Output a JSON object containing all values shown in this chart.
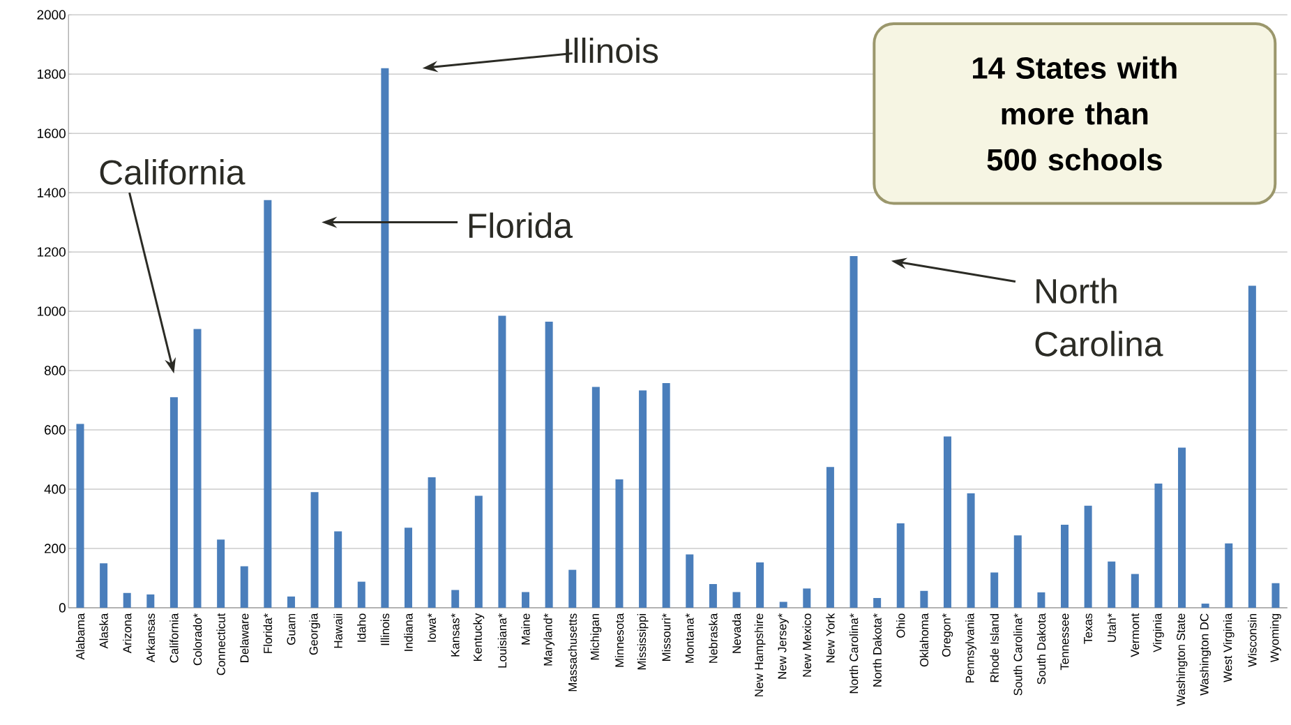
{
  "chart_data": {
    "type": "bar",
    "color": "#4a7ebb",
    "grid": "y",
    "ylim": [
      0,
      2000
    ],
    "yticks": [
      0,
      200,
      400,
      600,
      800,
      1000,
      1200,
      1400,
      1600,
      1800,
      2000
    ],
    "categories": [
      "Alabama",
      "Alaska",
      "Arizona",
      "Arkansas",
      "California",
      "Colorado*",
      "Connecticut",
      "Delaware",
      "Florida*",
      "Guam",
      "Georgia",
      "Hawaii",
      "Idaho",
      "Illinois",
      "Indiana",
      "Iowa*",
      "Kansas*",
      "Kentucky",
      "Louisiana*",
      "Maine",
      "Maryland*",
      "Massachusetts",
      "Michigan",
      "Minnesota",
      "Mississippi",
      "Missouri*",
      "Montana*",
      "Nebraska",
      "Nevada",
      "New Hampshire",
      "New Jersey*",
      "New Mexico",
      "New York",
      "North Carolina*",
      "North Dakota*",
      "Ohio",
      "Oklahoma",
      "Oregon*",
      "Pennsylvania",
      "Rhode Island",
      "South Carolina*",
      "South Dakota",
      "Tennessee",
      "Texas",
      "Utah*",
      "Vermont",
      "Virginia",
      "Washington State",
      "Washington DC",
      "West Virginia",
      "Wisconsin",
      "Wyoming"
    ],
    "values": [
      620,
      150,
      50,
      45,
      710,
      940,
      230,
      140,
      1375,
      38,
      390,
      258,
      88,
      1820,
      270,
      440,
      60,
      378,
      985,
      53,
      965,
      128,
      745,
      433,
      733,
      758,
      180,
      80,
      53,
      153,
      20,
      65,
      475,
      1186,
      33,
      285,
      57,
      578,
      386,
      119,
      244,
      52,
      280,
      344,
      156,
      114,
      419,
      540,
      14,
      217,
      1086,
      83
    ],
    "annotations": [
      "Illinois",
      "Florida",
      "California",
      "North Carolina",
      "14 States with more than 500 schools"
    ]
  }
}
